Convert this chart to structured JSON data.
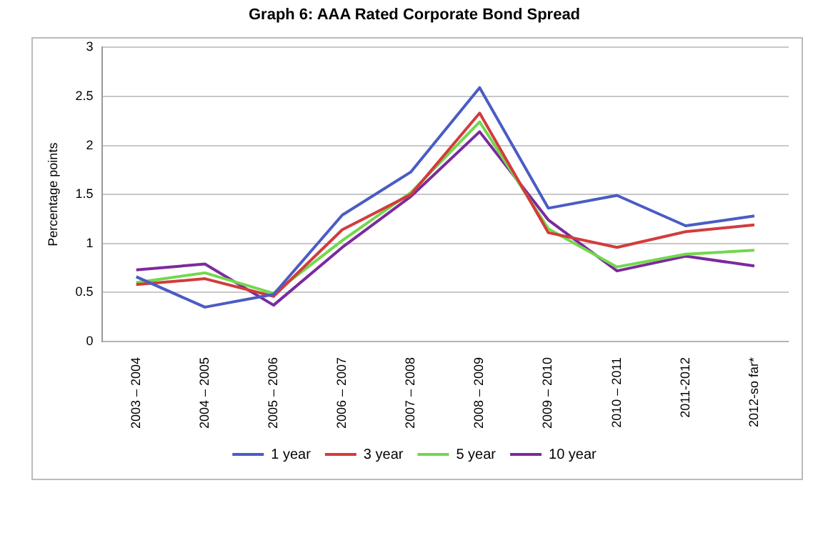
{
  "chart_data": {
    "type": "line",
    "title": "Graph 6: AAA Rated Corporate Bond Spread",
    "ylabel": "Percentage points",
    "categories": [
      "2003 – 2004",
      "2004 – 2005",
      "2005 – 2006",
      "2006 – 2007",
      "2007 – 2008",
      "2008 – 2009",
      "2009 – 2010",
      "2010 – 2011",
      "2011-2012",
      "2012-so far*"
    ],
    "series": [
      {
        "name": "1 year",
        "color": "#4a5cc4",
        "values": [
          0.66,
          0.35,
          0.48,
          1.29,
          1.73,
          2.59,
          1.36,
          1.49,
          1.18,
          1.28
        ]
      },
      {
        "name": "3 year",
        "color": "#d23c3c",
        "values": [
          0.58,
          0.64,
          0.46,
          1.14,
          1.5,
          2.33,
          1.11,
          0.96,
          1.12,
          1.19
        ]
      },
      {
        "name": "5 year",
        "color": "#72d84c",
        "values": [
          0.6,
          0.7,
          0.49,
          1.03,
          1.52,
          2.24,
          1.15,
          0.76,
          0.89,
          0.93
        ]
      },
      {
        "name": "10 year",
        "color": "#7b2a9e",
        "values": [
          0.73,
          0.79,
          0.37,
          0.96,
          1.48,
          2.14,
          1.24,
          0.72,
          0.87,
          0.77
        ]
      }
    ],
    "ylim": [
      0,
      3
    ],
    "yticks": [
      0,
      0.5,
      1,
      1.5,
      2,
      2.5,
      3
    ],
    "grid": "y",
    "legend": "bottom",
    "marker": "none",
    "line_style": "solid"
  }
}
